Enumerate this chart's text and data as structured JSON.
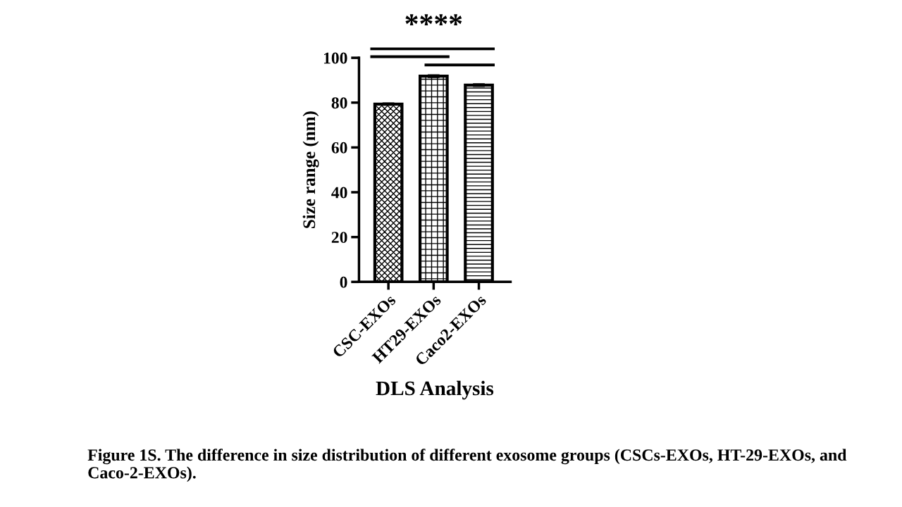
{
  "chart_data": {
    "type": "bar",
    "categories": [
      "CSC-EXOs",
      "HT29-EXOs",
      "Caco2-EXOs"
    ],
    "values": [
      79.3,
      91.8,
      87.8
    ],
    "errors": [
      0.3,
      0.4,
      0.4
    ],
    "colors": [
      "#000000",
      "#000000",
      "#000000"
    ],
    "xlabel": "DLS Analysis",
    "ylabel": "Size range (nm)",
    "ylim": [
      0,
      100
    ],
    "yticks": [
      0,
      20,
      40,
      60,
      80,
      100
    ],
    "grid": false,
    "legend": false,
    "annotations": [
      "****",
      "Figure 1S. The difference in size distribution of different exosome groups (CSCs-EXOs, HT-29-EXOs, and Caco-2-EXOs)."
    ]
  }
}
